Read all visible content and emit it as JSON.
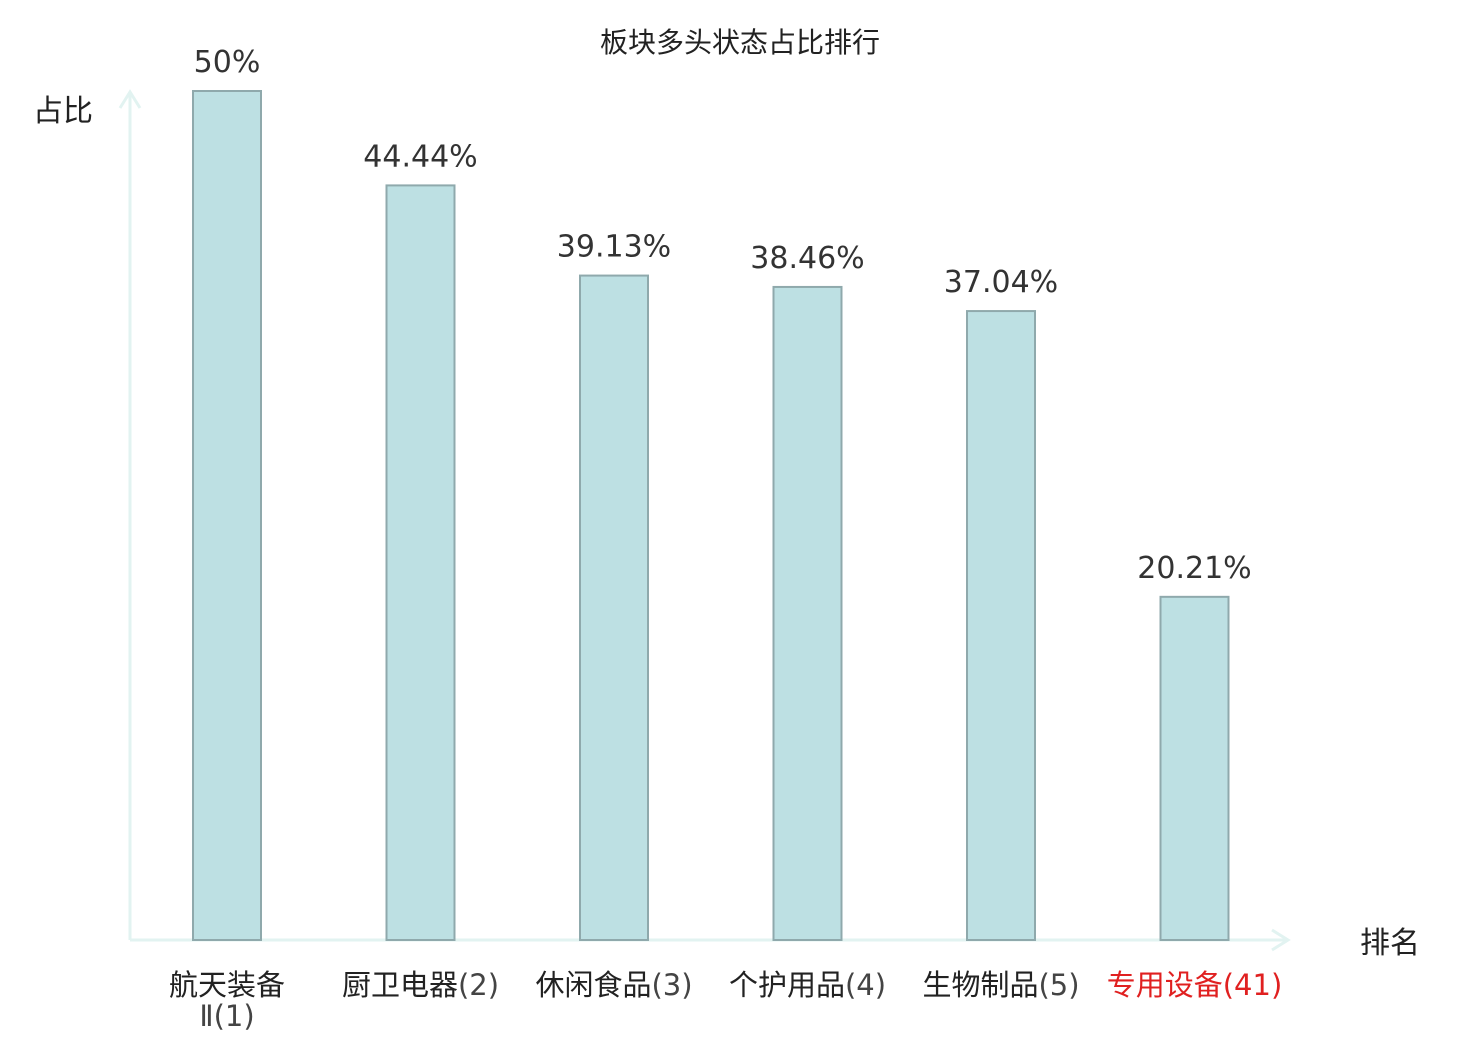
{
  "chart_data": {
    "type": "bar",
    "title": "板块多头状态占比排行",
    "xlabel": "排名",
    "ylabel": "占比",
    "ylim": [
      0,
      50
    ],
    "grid": false,
    "categories": [
      {
        "name": "航天装备Ⅱ",
        "rank": "(1)",
        "highlight": false
      },
      {
        "name": "厨卫电器",
        "rank": "(2)",
        "highlight": false
      },
      {
        "name": "休闲食品",
        "rank": "(3)",
        "highlight": false
      },
      {
        "name": "个护用品",
        "rank": "(4)",
        "highlight": false
      },
      {
        "name": "生物制品",
        "rank": "(5)",
        "highlight": false
      },
      {
        "name": "专用设备",
        "rank": "(41)",
        "highlight": true
      }
    ],
    "values": [
      50,
      44.44,
      39.13,
      38.46,
      37.04,
      20.21
    ],
    "value_labels": [
      "50%",
      "44.44%",
      "39.13%",
      "38.46%",
      "37.04%",
      "20.21%"
    ],
    "colors": {
      "bar_fill": "#bde0e3",
      "bar_stroke": "#8fa9ac",
      "axis": "#e2f3f1",
      "highlight_text": "#e02020"
    }
  }
}
